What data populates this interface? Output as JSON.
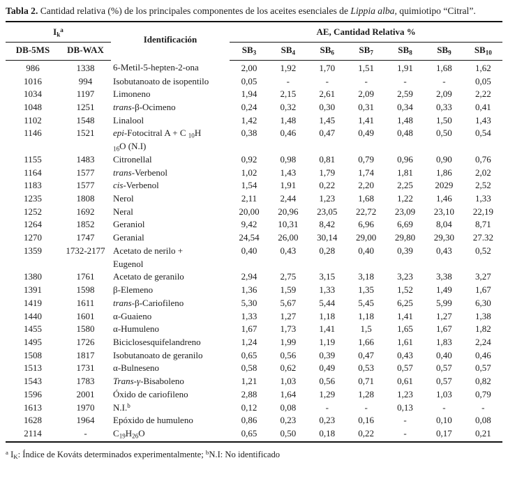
{
  "title": [
    {
      "t": "Tabla 2.",
      "s": "b"
    },
    {
      "t": " Cantidad relativa (%) de los principales componentes de los aceites esenciales de "
    },
    {
      "t": "Lippia alba",
      "s": "i"
    },
    {
      "t": ", quimiotipo “Citral”."
    }
  ],
  "table": {
    "header": {
      "ik": [
        {
          "t": "I"
        },
        {
          "t": "k",
          "s": "sub"
        },
        {
          "t": "a",
          "s": "sup"
        }
      ],
      "identificacion": "Identificación",
      "ae": "AE, Cantidad Relativa %",
      "db5ms": "DB-5MS",
      "dbwax": "DB-WAX",
      "sb": [
        [
          {
            "t": "SB"
          },
          {
            "t": "3",
            "s": "sub"
          }
        ],
        [
          {
            "t": "SB"
          },
          {
            "t": "4",
            "s": "sub"
          }
        ],
        [
          {
            "t": "SB"
          },
          {
            "t": "6",
            "s": "sub"
          }
        ],
        [
          {
            "t": "SB"
          },
          {
            "t": "7",
            "s": "sub"
          }
        ],
        [
          {
            "t": "SB"
          },
          {
            "t": "8",
            "s": "sub"
          }
        ],
        [
          {
            "t": "SB"
          },
          {
            "t": "9",
            "s": "sub"
          }
        ],
        [
          {
            "t": "SB"
          },
          {
            "t": "10",
            "s": "sub"
          }
        ]
      ]
    },
    "rows": [
      {
        "db5ms": "986",
        "dbwax": "1338",
        "name": [
          {
            "t": "6-Metil-5-hepten-2-ona"
          }
        ],
        "values": [
          "2,00",
          "1,92",
          "1,70",
          "1,51",
          "1,91",
          "1,68",
          "1,62"
        ]
      },
      {
        "db5ms": "1016",
        "dbwax": "994",
        "name": [
          {
            "t": "Isobutanoato de isopentilo"
          }
        ],
        "values": [
          "0,05",
          "-",
          "-",
          "-",
          "-",
          "-",
          "0,05"
        ]
      },
      {
        "db5ms": "1034",
        "dbwax": "1197",
        "name": [
          {
            "t": "Limoneno"
          }
        ],
        "values": [
          "1,94",
          "2,15",
          "2,61",
          "2,09",
          "2,59",
          "2,09",
          "2,22"
        ]
      },
      {
        "db5ms": "1048",
        "dbwax": "1251",
        "name": [
          {
            "t": "trans",
            "s": "i"
          },
          {
            "t": "-β-Ocimeno"
          }
        ],
        "values": [
          "0,24",
          "0,32",
          "0,30",
          "0,31",
          "0,34",
          "0,33",
          "0,41"
        ]
      },
      {
        "db5ms": "1102",
        "dbwax": "1548",
        "name": [
          {
            "t": "Linalool"
          }
        ],
        "values": [
          "1,42",
          "1,48",
          "1,45",
          "1,41",
          "1,48",
          "1,50",
          "1,43"
        ]
      },
      {
        "db5ms": "1146",
        "dbwax": "1521",
        "name": [
          {
            "t": "epi",
            "s": "i"
          },
          {
            "t": "-Fotocitral A +  C "
          },
          {
            "t": "10",
            "s": "sub"
          },
          {
            "t": "H"
          },
          {
            "s": "br"
          },
          {
            "t": "16",
            "s": "sub"
          },
          {
            "t": "O (N.I)"
          }
        ],
        "values": [
          "0,38",
          "0,46",
          "0,47",
          "0,49",
          "0,48",
          "0,50",
          "0,54"
        ]
      },
      {
        "db5ms": "1155",
        "dbwax": "1483",
        "name": [
          {
            "t": "Citronellal"
          }
        ],
        "values": [
          "0,92",
          "0,98",
          "0,81",
          "0,79",
          "0,96",
          "0,90",
          "0,76"
        ]
      },
      {
        "db5ms": "1164",
        "dbwax": "1577",
        "name": [
          {
            "t": "trans",
            "s": "i"
          },
          {
            "t": "-Verbenol"
          }
        ],
        "values": [
          "1,02",
          "1,43",
          "1,79",
          "1,74",
          "1,81",
          "1,86",
          "2,02"
        ]
      },
      {
        "db5ms": "1183",
        "dbwax": "1577",
        "name": [
          {
            "t": "cis",
            "s": "i"
          },
          {
            "t": "-Verbenol"
          }
        ],
        "values": [
          "1,54",
          "1,91",
          "0,22",
          "2,20",
          "2,25",
          "2029",
          "2,52"
        ]
      },
      {
        "db5ms": "1235",
        "dbwax": "1808",
        "name": [
          {
            "t": "Nerol"
          }
        ],
        "values": [
          "2,11",
          "2,44",
          "1,23",
          "1,68",
          "1,22",
          "1,46",
          "1,33"
        ]
      },
      {
        "db5ms": "1252",
        "dbwax": "1692",
        "name": [
          {
            "t": "Neral"
          }
        ],
        "values": [
          "20,00",
          "20,96",
          "23,05",
          "22,72",
          "23,09",
          "23,10",
          "22,19"
        ]
      },
      {
        "db5ms": "1264",
        "dbwax": "1852",
        "name": [
          {
            "t": "Geraniol"
          }
        ],
        "values": [
          "9,42",
          "10,31",
          "8,42",
          "6,96",
          "6,69",
          "8,04",
          "8,71"
        ]
      },
      {
        "db5ms": "1270",
        "dbwax": "1747",
        "name": [
          {
            "t": "Geranial"
          }
        ],
        "values": [
          "24,54",
          "26,00",
          "30,14",
          "29,00",
          "29,80",
          "29,30",
          "27.32"
        ]
      },
      {
        "db5ms": "1359",
        "dbwax": "1732-2177",
        "name": [
          {
            "t": "Acetato de nerilo +"
          },
          {
            "s": "br"
          },
          {
            "t": "Eugenol"
          }
        ],
        "values": [
          "0,40",
          "0,43",
          "0,28",
          "0,40",
          "0,39",
          "0,43",
          "0,52"
        ]
      },
      {
        "db5ms": "1380",
        "dbwax": "1761",
        "name": [
          {
            "t": "Acetato de geranilo"
          }
        ],
        "values": [
          "2,94",
          "2,75",
          "3,15",
          "3,18",
          "3,23",
          "3,38",
          "3,27"
        ]
      },
      {
        "db5ms": "1391",
        "dbwax": "1598",
        "name": [
          {
            "t": "β-Elemeno"
          }
        ],
        "values": [
          "1,36",
          "1,59",
          "1,33",
          "1,35",
          "1,52",
          "1,49",
          "1,67"
        ]
      },
      {
        "db5ms": "1419",
        "dbwax": "1611",
        "name": [
          {
            "t": "trans",
            "s": "i"
          },
          {
            "t": "-β-Cariofileno"
          }
        ],
        "values": [
          "5,30",
          "5,67",
          "5,44",
          "5,45",
          "6,25",
          "5,99",
          "6,30"
        ]
      },
      {
        "db5ms": "1440",
        "dbwax": "1601",
        "name": [
          {
            "t": "α-Guaieno"
          }
        ],
        "values": [
          "1,33",
          "1,27",
          "1,18",
          "1,18",
          "1,41",
          "1,27",
          "1,38"
        ]
      },
      {
        "db5ms": "1455",
        "dbwax": "1580",
        "name": [
          {
            "t": "α-Humuleno"
          }
        ],
        "values": [
          "1,67",
          "1,73",
          "1,41",
          "1,5",
          "1,65",
          "1,67",
          "1,82"
        ]
      },
      {
        "db5ms": "1495",
        "dbwax": "1726",
        "name": [
          {
            "t": "Biciclosesquifelandreno"
          }
        ],
        "values": [
          "1,24",
          "1,99",
          "1,19",
          "1,66",
          "1,61",
          "1,83",
          "2,24"
        ]
      },
      {
        "db5ms": "1508",
        "dbwax": "1817",
        "name": [
          {
            "t": "Isobutanoato de geranilo"
          }
        ],
        "values": [
          "0,65",
          "0,56",
          "0,39",
          "0,47",
          "0,43",
          "0,40",
          "0,46"
        ]
      },
      {
        "db5ms": "1513",
        "dbwax": "1731",
        "name": [
          {
            "t": "α-Bulneseno"
          }
        ],
        "values": [
          "0,58",
          "0,62",
          "0,49",
          "0,53",
          "0,57",
          "0,57",
          "0,57"
        ]
      },
      {
        "db5ms": "1543",
        "dbwax": "1783",
        "name": [
          {
            "t": "Trans-γ",
            "s": "i"
          },
          {
            "t": "-Bisaboleno"
          }
        ],
        "values": [
          "1,21",
          "1,03",
          "0,56",
          "0,71",
          "0,61",
          "0,57",
          "0,82"
        ]
      },
      {
        "db5ms": "1596",
        "dbwax": "2001",
        "name": [
          {
            "t": "Óxido de cariofileno"
          }
        ],
        "values": [
          "2,88",
          "1,64",
          "1,29",
          "1,28",
          "1,23",
          "1,03",
          "0,79"
        ]
      },
      {
        "db5ms": "1613",
        "dbwax": "1970",
        "name": [
          {
            "t": "N.I."
          },
          {
            "t": "b",
            "s": "sup"
          }
        ],
        "values": [
          "0,12",
          "0,08",
          "-",
          "-",
          "0,13",
          "-",
          "-"
        ]
      },
      {
        "db5ms": "1628",
        "dbwax": "1964",
        "name": [
          {
            "t": "Epóxido de humuleno"
          }
        ],
        "values": [
          "0,86",
          "0,23",
          "0,23",
          "0,16",
          "-",
          "0,10",
          "0,08"
        ]
      },
      {
        "db5ms": "2114",
        "dbwax": "-",
        "name": [
          {
            "t": "C"
          },
          {
            "t": "19",
            "s": "sub"
          },
          {
            "t": "H"
          },
          {
            "t": "26",
            "s": "sub"
          },
          {
            "t": "O"
          }
        ],
        "values": [
          "0,65",
          "0,50",
          "0,18",
          "0,22",
          "-",
          "0,17",
          "0,21"
        ]
      }
    ]
  },
  "footnote": [
    {
      "t": "a",
      "s": "sup"
    },
    {
      "t": " I"
    },
    {
      "t": "K",
      "s": "sub"
    },
    {
      "t": ": Índice de Kováts determinados experimentalmente; "
    },
    {
      "t": "b",
      "s": "sup"
    },
    {
      "t": "N.I: No identificado"
    }
  ]
}
